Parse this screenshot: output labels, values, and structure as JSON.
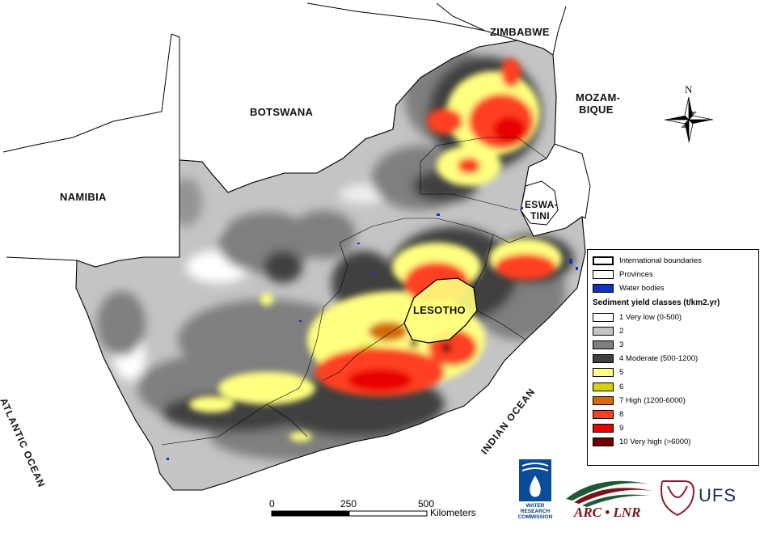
{
  "countries": {
    "zimbabwe": "ZIMBABWE",
    "botswana": "BOTSWANA",
    "namibia": "NAMIBIA",
    "mozambique_1": "MOZAM-",
    "mozambique_2": "BIQUE",
    "eswatini_1": "ESWA-",
    "eswatini_2": "TINI",
    "lesotho": "LESOTHO"
  },
  "oceans": {
    "atlantic": "ATLANTIC OCEAN",
    "indian": "INDIAN OCEAN"
  },
  "north_arrow": {
    "label": "N"
  },
  "legend": {
    "items": [
      {
        "label": "International boundaries",
        "kind": "line-thick"
      },
      {
        "label": "Provinces",
        "kind": "line-thin"
      },
      {
        "label": "Water bodies",
        "kind": "fill",
        "color": "#1030c8"
      }
    ],
    "sediment_title": "Sediment yield classes (t/km2.yr)",
    "classes": [
      {
        "label": "1 Very low (0-500)",
        "color": "#ffffff"
      },
      {
        "label": "2",
        "color": "#c4c4c4"
      },
      {
        "label": "3",
        "color": "#7f7f7f"
      },
      {
        "label": "4 Moderate (500-1200)",
        "color": "#404040"
      },
      {
        "label": "5",
        "color": "#ffff80"
      },
      {
        "label": "6",
        "color": "#d4d400"
      },
      {
        "label": "7 High (1200-6000)",
        "color": "#d46a00"
      },
      {
        "label": "8",
        "color": "#ff4020"
      },
      {
        "label": "9",
        "color": "#e80000"
      },
      {
        "label": "10 Very high (>6000)",
        "color": "#6a0000"
      }
    ]
  },
  "scale_bar": {
    "ticks": [
      "0",
      "250",
      "500"
    ],
    "unit": "Kilometers"
  },
  "logos": {
    "wrc_lines": [
      "WATER",
      "RESEARCH",
      "COMMISSION"
    ],
    "arc": "ARC • LNR",
    "ufs": "UFS"
  }
}
